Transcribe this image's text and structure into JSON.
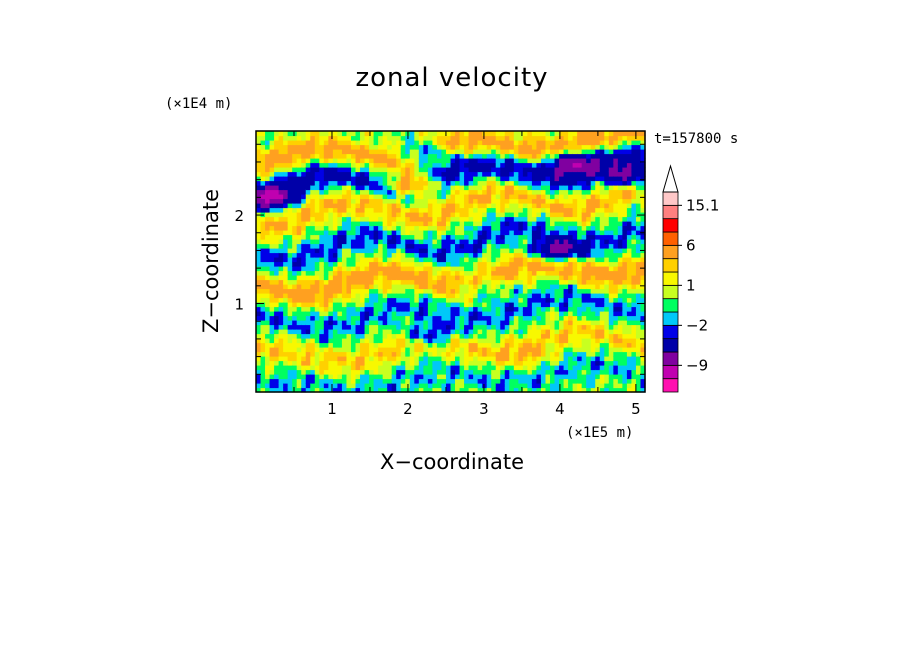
{
  "chart_data": {
    "type": "heatmap",
    "title": "zonal velocity",
    "xlabel": "X−coordinate",
    "ylabel": "Z−coordinate",
    "x_unit_label": "(×1E5 m)",
    "y_unit_label": "(×1E4 m)",
    "time_label": "t=157800 s",
    "xlim": [
      0,
      5.12
    ],
    "ylim": [
      0,
      2.95
    ],
    "x_ticks": [
      1,
      2,
      3,
      4,
      5
    ],
    "x_tick_labels": [
      "1",
      "2",
      "3",
      "4",
      "5"
    ],
    "y_ticks": [
      1,
      2
    ],
    "y_tick_labels": [
      "1",
      "2"
    ],
    "colorbar": {
      "levels": [
        -15,
        -12,
        -9,
        -6,
        -3,
        -2,
        -1,
        0,
        1,
        2,
        3,
        6,
        9,
        12,
        15.1
      ],
      "labels": [
        {
          "value": 15.1,
          "text": "15.1"
        },
        {
          "value": 6,
          "text": "6"
        },
        {
          "value": 1,
          "text": "1"
        },
        {
          "value": -2,
          "text": "−2"
        },
        {
          "value": -9,
          "text": "−9"
        }
      ],
      "colors": [
        "#ff10b0",
        "#c000b0",
        "#8000a0",
        "#0000a8",
        "#0000e8",
        "#00c8f8",
        "#00ff60",
        "#c8ff20",
        "#f8f800",
        "#ffd000",
        "#ffa020",
        "#ff6000",
        "#ff0000",
        "#ff8080",
        "#ffc8c8"
      ],
      "extend_top": true
    },
    "field_features": [
      {
        "kind": "layer",
        "z": 2.75,
        "value": 4,
        "amplitude": 0.08
      },
      {
        "kind": "layer",
        "z": 2.45,
        "value": -4,
        "amplitude": 0.1
      },
      {
        "kind": "layer",
        "z": 2.1,
        "value": 3,
        "amplitude": 0.12
      },
      {
        "kind": "layer",
        "z": 1.7,
        "value": -2.5,
        "amplitude": 0.12
      },
      {
        "kind": "layer",
        "z": 1.3,
        "value": 4,
        "amplitude": 0.1
      },
      {
        "kind": "layer",
        "z": 0.9,
        "value": -2,
        "amplitude": 0.1
      },
      {
        "kind": "layer",
        "z": 0.5,
        "value": 2.5,
        "amplitude": 0.1
      },
      {
        "kind": "layer",
        "z": 0.15,
        "value": -1.5,
        "amplitude": 0.08
      },
      {
        "kind": "blob",
        "x": 4.15,
        "z": 2.6,
        "value": -8
      },
      {
        "kind": "blob",
        "x": 4.9,
        "z": 2.45,
        "value": -7
      },
      {
        "kind": "blob",
        "x": 2.2,
        "z": 2.72,
        "value": -6
      },
      {
        "kind": "blob",
        "x": 0.2,
        "z": 2.2,
        "value": -7
      },
      {
        "kind": "blob",
        "x": 3.95,
        "z": 1.6,
        "value": -8
      },
      {
        "kind": "blob",
        "x": 2.3,
        "z": 0.65,
        "value": -5
      },
      {
        "kind": "blob",
        "x": 2.05,
        "z": 2.35,
        "value": 8
      },
      {
        "kind": "blob",
        "x": 3.6,
        "z": 0.4,
        "value": 1.5
      },
      {
        "kind": "blob",
        "x": 2.95,
        "z": 1.2,
        "value": -3
      }
    ]
  }
}
